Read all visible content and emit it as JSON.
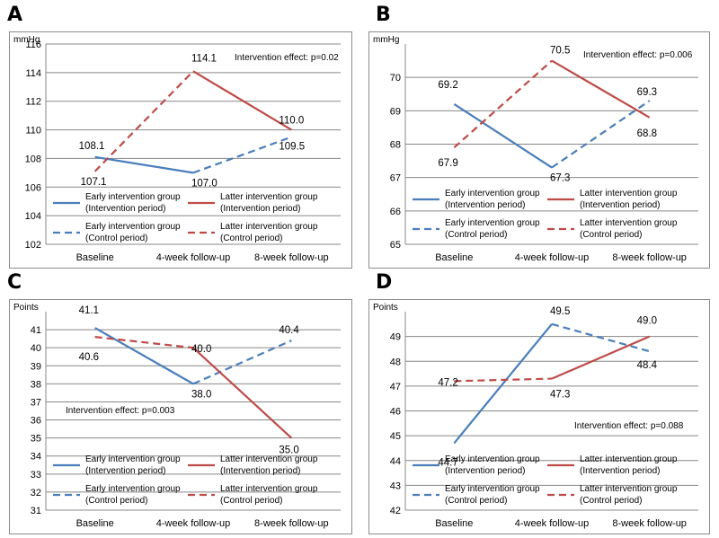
{
  "panels": [
    {
      "letter": "A",
      "chart_data": {
        "type": "line",
        "ylabel": "mmHg",
        "categories": [
          "Baseline",
          "4-week follow-up",
          "8-week follow-up"
        ],
        "ylim": [
          102,
          116
        ],
        "yticks": [
          102,
          104,
          106,
          108,
          110,
          112,
          114,
          116
        ],
        "grid": true,
        "annotation": "Intervention effect: p=0.02",
        "series": [
          {
            "name": "Early intervention group (Intervention period)",
            "color": "#4a7ebb",
            "dash": false,
            "points": [
              [
                0,
                108.1
              ],
              [
                1,
                107.0
              ]
            ]
          },
          {
            "name": "Early intervention group (Control period)",
            "color": "#4a7ebb",
            "dash": true,
            "points": [
              [
                1,
                107.0
              ],
              [
                2,
                109.5
              ]
            ]
          },
          {
            "name": "Latter intervention group (Intervention period)",
            "color": "#be4b48",
            "dash": false,
            "points": [
              [
                1,
                114.1
              ],
              [
                2,
                110.0
              ]
            ]
          },
          {
            "name": "Latter intervention group (Control period)",
            "color": "#be4b48",
            "dash": true,
            "points": [
              [
                0,
                107.1
              ],
              [
                1,
                114.1
              ]
            ]
          }
        ],
        "data_labels": [
          {
            "text": "108.1",
            "x": 0,
            "y": 108.1
          },
          {
            "text": "107.1",
            "x": 0,
            "y": 107.1
          },
          {
            "text": "114.1",
            "x": 1,
            "y": 114.1
          },
          {
            "text": "107.0",
            "x": 1,
            "y": 107.0
          },
          {
            "text": "110.0",
            "x": 2,
            "y": 110.0
          },
          {
            "text": "109.5",
            "x": 2,
            "y": 109.5
          }
        ]
      }
    },
    {
      "letter": "B",
      "chart_data": {
        "type": "line",
        "ylabel": "mmHg",
        "categories": [
          "Baseline",
          "4-week follow-up",
          "8-week follow-up"
        ],
        "ylim": [
          65,
          71
        ],
        "yticks": [
          65,
          66,
          67,
          68,
          69,
          70
        ],
        "grid": true,
        "annotation": "Intervention effect: p=0.006",
        "series": [
          {
            "name": "Early intervention group (Intervention period)",
            "color": "#4a7ebb",
            "dash": false,
            "points": [
              [
                0,
                69.2
              ],
              [
                1,
                67.3
              ]
            ]
          },
          {
            "name": "Early intervention group (Control period)",
            "color": "#4a7ebb",
            "dash": true,
            "points": [
              [
                1,
                67.3
              ],
              [
                2,
                69.3
              ]
            ]
          },
          {
            "name": "Latter intervention group (Intervention period)",
            "color": "#be4b48",
            "dash": false,
            "points": [
              [
                1,
                70.5
              ],
              [
                2,
                68.8
              ]
            ]
          },
          {
            "name": "Latter intervention group (Control period)",
            "color": "#be4b48",
            "dash": true,
            "points": [
              [
                0,
                67.9
              ],
              [
                1,
                70.5
              ]
            ]
          }
        ],
        "data_labels": [
          {
            "text": "69.2",
            "x": 0,
            "y": 69.2
          },
          {
            "text": "67.9",
            "x": 0,
            "y": 67.9
          },
          {
            "text": "70.5",
            "x": 1,
            "y": 70.5
          },
          {
            "text": "67.3",
            "x": 1,
            "y": 67.3
          },
          {
            "text": "69.3",
            "x": 2,
            "y": 69.3
          },
          {
            "text": "68.8",
            "x": 2,
            "y": 68.8
          }
        ]
      }
    },
    {
      "letter": "C",
      "chart_data": {
        "type": "line",
        "ylabel": "Points",
        "categories": [
          "Baseline",
          "4-week follow-up",
          "8-week follow-up"
        ],
        "ylim": [
          31,
          42
        ],
        "yticks": [
          31,
          32,
          33,
          34,
          35,
          36,
          37,
          38,
          39,
          40,
          41
        ],
        "grid": true,
        "annotation": "Intervention effect: p=0.003",
        "series": [
          {
            "name": "Early intervention group (Intervention period)",
            "color": "#4a7ebb",
            "dash": false,
            "points": [
              [
                0,
                41.1
              ],
              [
                1,
                38.0
              ]
            ]
          },
          {
            "name": "Early intervention group (Control period)",
            "color": "#4a7ebb",
            "dash": true,
            "points": [
              [
                1,
                38.0
              ],
              [
                2,
                40.4
              ]
            ]
          },
          {
            "name": "Latter intervention group (Intervention period)",
            "color": "#be4b48",
            "dash": false,
            "points": [
              [
                1,
                40.0
              ],
              [
                2,
                35.0
              ]
            ]
          },
          {
            "name": "Latter intervention group (Control period)",
            "color": "#be4b48",
            "dash": true,
            "points": [
              [
                0,
                40.6
              ],
              [
                1,
                40.0
              ]
            ]
          }
        ],
        "data_labels": [
          {
            "text": "41.1",
            "x": 0,
            "y": 41.1
          },
          {
            "text": "40.6",
            "x": 0,
            "y": 40.6
          },
          {
            "text": "40.0",
            "x": 1,
            "y": 40.0
          },
          {
            "text": "38.0",
            "x": 1,
            "y": 38.0
          },
          {
            "text": "40.4",
            "x": 2,
            "y": 40.4
          },
          {
            "text": "35.0",
            "x": 2,
            "y": 35.0
          }
        ]
      }
    },
    {
      "letter": "D",
      "chart_data": {
        "type": "line",
        "ylabel": "Points",
        "categories": [
          "Baseline",
          "4-week follow-up",
          "8-week follow-up"
        ],
        "ylim": [
          42,
          50
        ],
        "yticks": [
          42,
          43,
          44,
          45,
          46,
          47,
          48,
          49
        ],
        "grid": true,
        "annotation": "Intervention effect: p=0.088",
        "series": [
          {
            "name": "Early intervention group (Intervention period)",
            "color": "#4a7ebb",
            "dash": false,
            "points": [
              [
                0,
                44.7
              ],
              [
                1,
                49.5
              ]
            ]
          },
          {
            "name": "Early intervention group (Control period)",
            "color": "#4a7ebb",
            "dash": true,
            "points": [
              [
                1,
                49.5
              ],
              [
                2,
                48.4
              ]
            ]
          },
          {
            "name": "Latter intervention group (Intervention period)",
            "color": "#be4b48",
            "dash": false,
            "points": [
              [
                1,
                47.3
              ],
              [
                2,
                49.0
              ]
            ]
          },
          {
            "name": "Latter intervention group (Control period)",
            "color": "#be4b48",
            "dash": true,
            "points": [
              [
                0,
                47.2
              ],
              [
                1,
                47.3
              ]
            ]
          }
        ],
        "data_labels": [
          {
            "text": "44.7",
            "x": 0,
            "y": 44.7
          },
          {
            "text": "47.2",
            "x": 0,
            "y": 47.2
          },
          {
            "text": "49.5",
            "x": 1,
            "y": 49.5
          },
          {
            "text": "47.3",
            "x": 1,
            "y": 47.3
          },
          {
            "text": "49.0",
            "x": 2,
            "y": 49.0
          },
          {
            "text": "48.4",
            "x": 2,
            "y": 48.4
          }
        ]
      }
    }
  ],
  "legend": {
    "early_line1": "Early intervention group",
    "latter_line1": "Latter intervention group",
    "intervention_line2": "(Intervention period)",
    "control_line2": "(Control period)"
  }
}
